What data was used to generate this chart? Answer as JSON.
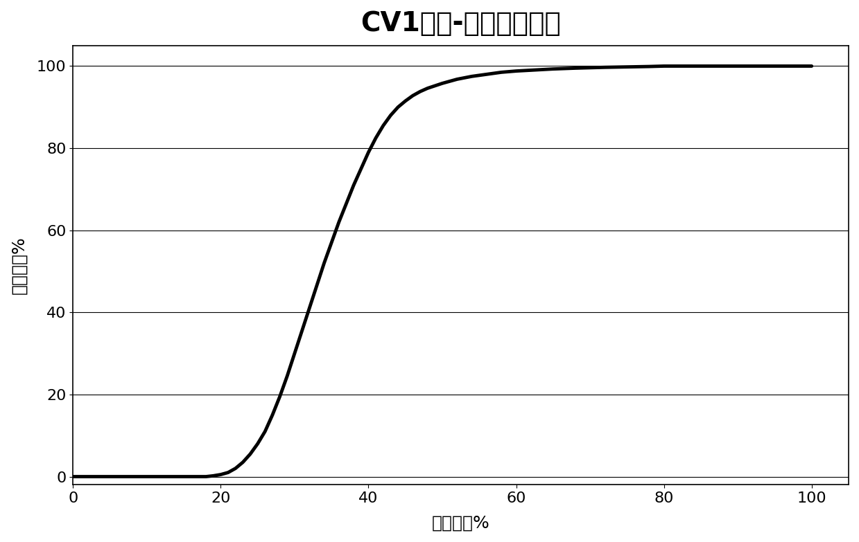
{
  "title": "CV1开度-流量特性曲线",
  "xlabel": "调门开度%",
  "ylabel": "调门流量%",
  "xlim": [
    0,
    105
  ],
  "ylim": [
    -2,
    105
  ],
  "xticks": [
    0,
    20,
    40,
    60,
    80,
    100
  ],
  "yticks": [
    0,
    20,
    40,
    60,
    80,
    100
  ],
  "background_color": "#ffffff",
  "line_color": "#000000",
  "line_width": 3.5,
  "title_fontsize": 28,
  "label_fontsize": 18,
  "tick_fontsize": 16,
  "curve_x": [
    0,
    5,
    10,
    15,
    17,
    18,
    19,
    20,
    21,
    22,
    23,
    24,
    25,
    26,
    27,
    28,
    29,
    30,
    31,
    32,
    33,
    34,
    35,
    36,
    37,
    38,
    39,
    40,
    41,
    42,
    43,
    44,
    45,
    46,
    47,
    48,
    50,
    52,
    54,
    56,
    58,
    60,
    62,
    65,
    68,
    70,
    72,
    75,
    78,
    80,
    83,
    86,
    90,
    95,
    100
  ],
  "curve_y": [
    0,
    0,
    0,
    0,
    0,
    0,
    0.2,
    0.5,
    1.0,
    2.0,
    3.5,
    5.5,
    8.0,
    11.0,
    15.0,
    19.5,
    24.5,
    30.0,
    35.5,
    41.0,
    46.5,
    52.0,
    57.0,
    62.0,
    66.5,
    71.0,
    75.0,
    79.0,
    82.5,
    85.5,
    88.0,
    90.0,
    91.5,
    92.8,
    93.8,
    94.6,
    95.8,
    96.8,
    97.5,
    98.0,
    98.5,
    98.8,
    99.0,
    99.3,
    99.5,
    99.6,
    99.7,
    99.8,
    99.9,
    100.0,
    100.0,
    100.0,
    100.0,
    100.0,
    100.0
  ]
}
